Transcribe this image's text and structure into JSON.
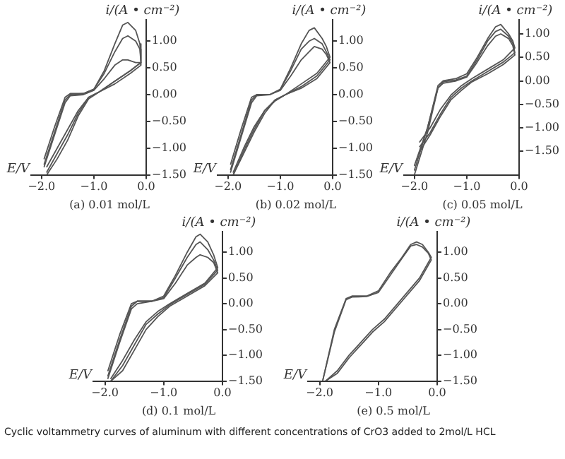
{
  "chart_data": [
    {
      "type": "line",
      "title": "(a) 0.01 mol/L",
      "xlabel": "E/V",
      "ylabel": "i/(A • cm⁻²)",
      "xlim": [
        -2.2,
        0
      ],
      "ylim": [
        -1.5,
        1.4
      ],
      "grid": false,
      "legend": false,
      "marker": "none",
      "line_style": "solid",
      "xticks": [
        {
          "value": -2,
          "label": "−2.0"
        },
        {
          "value": -1,
          "label": "−1.0"
        },
        {
          "value": 0,
          "label": "0.0"
        }
      ],
      "yticks": [
        {
          "value": -1.5,
          "label": "−1.50"
        },
        {
          "value": -1,
          "label": "−1.00"
        },
        {
          "value": -0.5,
          "label": "−0.50"
        },
        {
          "value": 0,
          "label": "0.00"
        },
        {
          "value": 0.5,
          "label": "0.50"
        },
        {
          "value": 1,
          "label": "1.00"
        }
      ],
      "x": [
        -1.95,
        -1.75,
        -1.55,
        -1.45,
        -1.2,
        -1.0,
        -0.8,
        -0.6,
        -0.45,
        -0.35,
        -0.2,
        -0.12,
        -0.1,
        -0.3,
        -0.6,
        -0.9,
        -1.1,
        -1.3,
        -1.5,
        -1.7,
        -1.9
      ],
      "series": [
        {
          "color": "#555555",
          "values": [
            -1.2,
            -0.6,
            -0.05,
            0.02,
            0.02,
            0.1,
            0.45,
            0.95,
            1.3,
            1.35,
            1.2,
            0.95,
            0.6,
            0.45,
            0.25,
            0.05,
            -0.05,
            -0.3,
            -0.65,
            -1.0,
            -1.35
          ]
        },
        {
          "color": "#555555",
          "values": [
            -1.3,
            -0.7,
            -0.1,
            0.0,
            0.02,
            0.1,
            0.4,
            0.8,
            1.05,
            1.1,
            1.0,
            0.85,
            0.6,
            0.45,
            0.25,
            0.05,
            -0.05,
            -0.35,
            -0.75,
            -1.1,
            -1.45
          ]
        },
        {
          "color": "#555555",
          "values": [
            -1.35,
            -0.75,
            -0.15,
            -0.02,
            0.0,
            0.08,
            0.3,
            0.55,
            0.65,
            0.65,
            0.6,
            0.6,
            0.55,
            0.4,
            0.2,
            0.05,
            -0.08,
            -0.4,
            -0.85,
            -1.2,
            -1.5
          ]
        }
      ]
    },
    {
      "type": "line",
      "title": "(b) 0.02 mol/L",
      "xlabel": "E/V",
      "ylabel": "i/(A • cm⁻²)",
      "xlim": [
        -2.2,
        0
      ],
      "ylim": [
        -1.5,
        1.4
      ],
      "grid": false,
      "legend": false,
      "marker": "none",
      "line_style": "solid",
      "xticks": [
        {
          "value": -2,
          "label": "−2.0"
        },
        {
          "value": -1,
          "label": "−1.0"
        },
        {
          "value": 0,
          "label": "0.0"
        }
      ],
      "yticks": [
        {
          "value": -1.5,
          "label": "−1.50"
        },
        {
          "value": -1,
          "label": "−1.00"
        },
        {
          "value": -0.5,
          "label": "−0.50"
        },
        {
          "value": 0,
          "label": "0.00"
        },
        {
          "value": 0.5,
          "label": "0.50"
        },
        {
          "value": 1,
          "label": "1.00"
        }
      ],
      "x": [
        -1.95,
        -1.75,
        -1.55,
        -1.45,
        -1.2,
        -1.0,
        -0.8,
        -0.6,
        -0.45,
        -0.35,
        -0.2,
        -0.12,
        -0.05,
        -0.3,
        -0.6,
        -0.9,
        -1.1,
        -1.3,
        -1.5,
        -1.7,
        -1.9
      ],
      "series": [
        {
          "color": "#555555",
          "values": [
            -1.3,
            -0.65,
            -0.05,
            0.0,
            0.0,
            0.1,
            0.5,
            0.95,
            1.2,
            1.25,
            1.05,
            0.9,
            0.7,
            0.4,
            0.2,
            0.0,
            -0.1,
            -0.3,
            -0.6,
            -1.0,
            -1.45
          ]
        },
        {
          "color": "#555555",
          "values": [
            -1.45,
            -0.8,
            -0.15,
            -0.02,
            0.0,
            0.1,
            0.45,
            0.85,
            1.0,
            1.05,
            0.95,
            0.8,
            0.65,
            0.35,
            0.15,
            0.0,
            -0.1,
            -0.35,
            -0.7,
            -1.1,
            -1.5
          ]
        },
        {
          "color": "#555555",
          "values": [
            -1.4,
            -0.75,
            -0.1,
            0.0,
            0.0,
            0.08,
            0.35,
            0.65,
            0.8,
            0.9,
            0.85,
            0.75,
            0.6,
            0.3,
            0.12,
            0.0,
            -0.12,
            -0.3,
            -0.65,
            -1.05,
            -1.5
          ]
        }
      ]
    },
    {
      "type": "line",
      "title": "(c) 0.05 mol/L",
      "xlabel": "E/V",
      "ylabel": "i/(A • cm⁻²)",
      "xlim": [
        -2.2,
        0
      ],
      "ylim": [
        -2.0,
        1.3
      ],
      "grid": false,
      "legend": false,
      "marker": "none",
      "line_style": "solid",
      "xticks": [
        {
          "value": -2,
          "label": "−2.0"
        },
        {
          "value": -1,
          "label": "−1.0"
        },
        {
          "value": 0,
          "label": "0.0"
        }
      ],
      "yticks": [
        {
          "value": -1.5,
          "label": "−1.50"
        },
        {
          "value": -1,
          "label": "−1.00"
        },
        {
          "value": -0.5,
          "label": "−0.50"
        },
        {
          "value": 0,
          "label": "0.00"
        },
        {
          "value": 0.5,
          "label": "0.50"
        },
        {
          "value": 1,
          "label": "1.00"
        }
      ],
      "x": [
        -2.0,
        -1.75,
        -1.55,
        -1.45,
        -1.2,
        -1.0,
        -0.8,
        -0.6,
        -0.45,
        -0.35,
        -0.2,
        -0.12,
        -0.08,
        -0.3,
        -0.6,
        -0.9,
        -1.1,
        -1.3,
        -1.5,
        -1.7,
        -1.9
      ],
      "series": [
        {
          "color": "#555555",
          "values": [
            -1.9,
            -1.0,
            -0.1,
            0.0,
            0.05,
            0.15,
            0.5,
            0.9,
            1.15,
            1.2,
            1.0,
            0.85,
            0.7,
            0.45,
            0.25,
            0.05,
            -0.1,
            -0.3,
            -0.6,
            -1.0,
            -1.3
          ]
        },
        {
          "color": "#555555",
          "values": [
            -2.0,
            -1.1,
            -0.15,
            -0.02,
            0.02,
            0.1,
            0.45,
            0.85,
            1.05,
            1.1,
            0.95,
            0.8,
            0.6,
            0.4,
            0.2,
            0.0,
            -0.15,
            -0.35,
            -0.7,
            -1.1,
            -1.4
          ]
        },
        {
          "color": "#555555",
          "values": [
            -1.8,
            -1.0,
            -0.15,
            -0.05,
            0.0,
            0.08,
            0.4,
            0.75,
            0.95,
            1.0,
            0.9,
            0.75,
            0.55,
            0.35,
            0.15,
            -0.02,
            -0.2,
            -0.4,
            -0.75,
            -1.15,
            -1.5
          ]
        }
      ]
    },
    {
      "type": "line",
      "title": "(d) 0.1 mol/L",
      "xlabel": "E/V",
      "ylabel": "i/(A • cm⁻²)",
      "xlim": [
        -2.2,
        0
      ],
      "ylim": [
        -1.5,
        1.4
      ],
      "grid": false,
      "legend": false,
      "marker": "none",
      "line_style": "solid",
      "xticks": [
        {
          "value": -2,
          "label": "−2.0"
        },
        {
          "value": -1,
          "label": "−1.0"
        },
        {
          "value": 0,
          "label": "0.0"
        }
      ],
      "yticks": [
        {
          "value": -1.5,
          "label": "−1.50"
        },
        {
          "value": -1,
          "label": "−1.00"
        },
        {
          "value": -0.5,
          "label": "−0.50"
        },
        {
          "value": 0,
          "label": "0.00"
        },
        {
          "value": 0.5,
          "label": "0.50"
        },
        {
          "value": 1,
          "label": "1.00"
        }
      ],
      "x": [
        -1.95,
        -1.75,
        -1.55,
        -1.45,
        -1.2,
        -1.0,
        -0.8,
        -0.6,
        -0.45,
        -0.38,
        -0.25,
        -0.15,
        -0.08,
        -0.3,
        -0.6,
        -0.9,
        -1.1,
        -1.3,
        -1.5,
        -1.7,
        -1.9
      ],
      "series": [
        {
          "color": "#555555",
          "values": [
            -1.3,
            -0.6,
            0.0,
            0.05,
            0.05,
            0.15,
            0.55,
            1.0,
            1.3,
            1.35,
            1.2,
            0.95,
            0.7,
            0.4,
            0.2,
            0.0,
            -0.15,
            -0.35,
            -0.7,
            -1.1,
            -1.45
          ]
        },
        {
          "color": "#555555",
          "values": [
            -1.4,
            -0.7,
            -0.05,
            0.05,
            0.05,
            0.12,
            0.5,
            0.9,
            1.15,
            1.2,
            1.05,
            0.85,
            0.65,
            0.38,
            0.18,
            -0.02,
            -0.2,
            -0.4,
            -0.8,
            -1.2,
            -1.5
          ]
        },
        {
          "color": "#555555",
          "values": [
            -1.45,
            -0.75,
            -0.1,
            0.0,
            0.05,
            0.1,
            0.4,
            0.75,
            0.9,
            0.95,
            0.9,
            0.8,
            0.6,
            0.35,
            0.15,
            -0.05,
            -0.25,
            -0.5,
            -0.9,
            -1.3,
            -1.5
          ]
        }
      ]
    },
    {
      "type": "line",
      "title": "(e) 0.5 mol/L",
      "xlabel": "E/V",
      "ylabel": "i/(A • cm⁻²)",
      "xlim": [
        -2.2,
        0
      ],
      "ylim": [
        -1.5,
        1.4
      ],
      "grid": false,
      "legend": false,
      "marker": "none",
      "line_style": "solid",
      "xticks": [
        {
          "value": -2,
          "label": "−2.0"
        },
        {
          "value": -1,
          "label": "−1.0"
        },
        {
          "value": 0,
          "label": "0.0"
        }
      ],
      "yticks": [
        {
          "value": -1.5,
          "label": "−1.50"
        },
        {
          "value": -1,
          "label": "−1.00"
        },
        {
          "value": -0.5,
          "label": "−0.50"
        },
        {
          "value": 0,
          "label": "0.00"
        },
        {
          "value": 0.5,
          "label": "0.50"
        },
        {
          "value": 1,
          "label": "1.00"
        }
      ],
      "annotations": [
        "Cyclic voltammetry curves of aluminum with different concentrations of CrO3 added to 2mol/L HCL"
      ],
      "x": [
        -1.95,
        -1.75,
        -1.55,
        -1.45,
        -1.2,
        -1.0,
        -0.8,
        -0.6,
        -0.45,
        -0.35,
        -0.25,
        -0.15,
        -0.1,
        -0.3,
        -0.6,
        -0.9,
        -1.1,
        -1.3,
        -1.5,
        -1.7,
        -1.9
      ],
      "series": [
        {
          "color": "#555555",
          "values": [
            -1.5,
            -0.5,
            0.1,
            0.15,
            0.15,
            0.25,
            0.6,
            0.9,
            1.15,
            1.2,
            1.15,
            1.0,
            0.9,
            0.5,
            0.1,
            -0.3,
            -0.5,
            -0.75,
            -1.0,
            -1.3,
            -1.5
          ]
        },
        {
          "color": "#555555",
          "values": [
            -1.5,
            -0.55,
            0.08,
            0.13,
            0.14,
            0.22,
            0.55,
            0.88,
            1.12,
            1.15,
            1.1,
            0.98,
            0.85,
            0.45,
            0.05,
            -0.35,
            -0.55,
            -0.8,
            -1.05,
            -1.35,
            -1.5
          ]
        }
      ]
    }
  ]
}
